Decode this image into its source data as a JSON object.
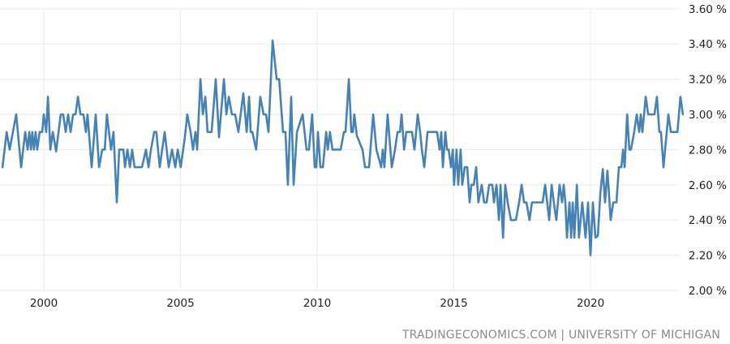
{
  "chart_data": {
    "type": "line",
    "title": "",
    "xlabel": "",
    "ylabel": "",
    "xlim": [
      1998.4,
      2024.0
    ],
    "ylim": [
      2.0,
      3.6
    ],
    "grid": true,
    "line_color": "#4682b4",
    "grid_color": "#ececec",
    "x_ticks": [
      2000,
      2005,
      2010,
      2015,
      2020
    ],
    "x_tick_labels": [
      "2000",
      "2005",
      "2010",
      "2015",
      "2020"
    ],
    "y_ticks": [
      2.0,
      2.2,
      2.4,
      2.6,
      2.8,
      3.0,
      3.2,
      3.4,
      3.6
    ],
    "y_tick_labels": [
      "2.00 %",
      "2.20 %",
      "2.40 %",
      "2.60 %",
      "2.80 %",
      "3.00 %",
      "3.20 %",
      "3.40 %",
      "3.60 %"
    ],
    "source": "TRADINGECONOMICS.COM | UNIVERSITY OF MICHIGAN",
    "series": [
      {
        "x": [
          1998.49,
          1998.64,
          1998.75,
          1998.99,
          1999.17,
          1999.32,
          1999.41,
          1999.47,
          1999.53,
          1999.58,
          1999.64,
          1999.7,
          1999.76,
          1999.85,
          1999.94,
          2000.0,
          2000.09,
          2000.15,
          2000.24,
          2000.33,
          2000.45,
          2000.62,
          2000.71,
          2000.8,
          2000.89,
          2000.98,
          2001.07,
          2001.16,
          2001.25,
          2001.34,
          2001.45,
          2001.54,
          2001.6,
          2001.75,
          2001.9,
          2002.02,
          2002.14,
          2002.23,
          2002.31,
          2002.46,
          2002.55,
          2002.67,
          2002.76,
          2002.91,
          2002.97,
          2003.06,
          2003.15,
          2003.23,
          2003.32,
          2003.41,
          2003.59,
          2003.74,
          2003.83,
          2003.92,
          2004.04,
          2004.12,
          2004.24,
          2004.42,
          2004.57,
          2004.69,
          2004.81,
          2004.9,
          2005.01,
          2005.16,
          2005.25,
          2005.37,
          2005.46,
          2005.55,
          2005.61,
          2005.73,
          2005.82,
          2005.91,
          2005.99,
          2006.05,
          2006.14,
          2006.29,
          2006.41,
          2006.59,
          2006.68,
          2006.77,
          2006.88,
          2007.0,
          2007.12,
          2007.3,
          2007.42,
          2007.51,
          2007.57,
          2007.63,
          2007.77,
          2007.92,
          2008.04,
          2008.13,
          2008.22,
          2008.37,
          2008.52,
          2008.61,
          2008.75,
          2008.84,
          2008.93,
          2009.05,
          2009.14,
          2009.26,
          2009.47,
          2009.61,
          2009.7,
          2009.82,
          2009.91,
          2009.97,
          2010.03,
          2010.12,
          2010.21,
          2010.33,
          2010.39,
          2010.47,
          2010.56,
          2010.68,
          2010.86,
          2010.98,
          2011.04,
          2011.16,
          2011.25,
          2011.31,
          2011.36,
          2011.45,
          2011.66,
          2011.75,
          2011.9,
          2012.05,
          2012.17,
          2012.34,
          2012.4,
          2012.46,
          2012.58,
          2012.73,
          2012.85,
          2012.94,
          2013.03,
          2013.09,
          2013.18,
          2013.26,
          2013.35,
          2013.47,
          2013.56,
          2013.68,
          2013.77,
          2013.83,
          2013.92,
          2014.04,
          2014.15,
          2014.27,
          2014.39,
          2014.48,
          2014.54,
          2014.6,
          2014.69,
          2014.75,
          2014.81,
          2014.9,
          2014.96,
          2015.01,
          2015.1,
          2015.16,
          2015.25,
          2015.31,
          2015.4,
          2015.49,
          2015.58,
          2015.64,
          2015.73,
          2015.82,
          2015.9,
          2016.02,
          2016.11,
          2016.2,
          2016.29,
          2016.41,
          2016.47,
          2016.56,
          2016.65,
          2016.71,
          2016.8,
          2016.88,
          2016.97,
          2017.09,
          2017.18,
          2017.27,
          2017.39,
          2017.48,
          2017.57,
          2017.66,
          2017.77,
          2017.86,
          2017.98,
          2018.16,
          2018.25,
          2018.34,
          2018.49,
          2018.58,
          2018.66,
          2018.75,
          2018.87,
          2018.96,
          2019.02,
          2019.08,
          2019.14,
          2019.23,
          2019.29,
          2019.35,
          2019.41,
          2019.5,
          2019.58,
          2019.7,
          2019.82,
          2019.91,
          2020.0,
          2020.09,
          2020.18,
          2020.27,
          2020.36,
          2020.45,
          2020.53,
          2020.62,
          2020.74,
          2020.83,
          2020.95,
          2021.04,
          2021.13,
          2021.19,
          2021.25,
          2021.34,
          2021.42,
          2021.48,
          2021.6,
          2021.69,
          2021.78,
          2021.84,
          2021.9,
          2022.02,
          2022.11,
          2022.23,
          2022.34,
          2022.43,
          2022.52,
          2022.58,
          2022.67,
          2022.79,
          2022.85,
          2022.94,
          2023.03,
          2023.18,
          2023.29,
          2023.38
        ],
        "y": [
          2.7,
          2.9,
          2.8,
          3.0,
          2.7,
          2.9,
          2.8,
          2.9,
          2.8,
          2.9,
          2.8,
          2.9,
          2.8,
          2.9,
          2.9,
          3.0,
          2.9,
          3.1,
          2.8,
          2.9,
          2.79,
          3.0,
          3.0,
          2.9,
          3.0,
          2.9,
          3.0,
          3.0,
          3.1,
          3.0,
          3.0,
          2.9,
          3.0,
          2.7,
          3.0,
          2.7,
          2.8,
          2.8,
          3.0,
          2.8,
          2.9,
          2.5,
          2.8,
          2.8,
          2.7,
          2.8,
          2.7,
          2.8,
          2.7,
          2.7,
          2.7,
          2.8,
          2.7,
          2.8,
          2.9,
          2.9,
          2.7,
          2.9,
          2.7,
          2.8,
          2.7,
          2.8,
          2.7,
          2.87,
          3.0,
          2.9,
          2.8,
          2.9,
          2.8,
          3.2,
          3.0,
          3.1,
          2.9,
          2.9,
          2.9,
          3.2,
          2.87,
          3.2,
          3.0,
          3.1,
          3.0,
          3.0,
          2.9,
          3.12,
          2.9,
          3.1,
          2.9,
          2.9,
          2.8,
          3.1,
          3.0,
          3.0,
          2.9,
          3.42,
          3.2,
          3.2,
          2.9,
          2.9,
          2.6,
          3.1,
          2.6,
          2.9,
          3.0,
          2.8,
          2.8,
          3.0,
          2.7,
          2.7,
          2.9,
          2.7,
          2.7,
          2.9,
          2.8,
          2.9,
          2.8,
          2.8,
          2.8,
          2.9,
          2.9,
          3.2,
          2.9,
          2.9,
          3.0,
          2.88,
          2.8,
          2.7,
          2.7,
          3.0,
          2.8,
          2.7,
          2.8,
          2.7,
          3.0,
          2.7,
          2.8,
          2.9,
          2.9,
          3.0,
          2.8,
          2.9,
          2.9,
          2.9,
          2.8,
          3.0,
          2.9,
          2.8,
          2.7,
          2.9,
          2.9,
          2.9,
          2.9,
          2.8,
          2.9,
          2.7,
          2.9,
          2.8,
          2.8,
          2.7,
          2.8,
          2.6,
          2.8,
          2.6,
          2.8,
          2.6,
          2.7,
          2.7,
          2.5,
          2.6,
          2.6,
          2.7,
          2.5,
          2.6,
          2.5,
          2.5,
          2.6,
          2.6,
          2.5,
          2.6,
          2.4,
          2.6,
          2.3,
          2.6,
          2.5,
          2.4,
          2.4,
          2.4,
          2.5,
          2.6,
          2.5,
          2.5,
          2.4,
          2.5,
          2.5,
          2.5,
          2.5,
          2.6,
          2.4,
          2.6,
          2.5,
          2.4,
          2.6,
          2.5,
          2.6,
          2.5,
          2.3,
          2.5,
          2.3,
          2.5,
          2.3,
          2.6,
          2.3,
          2.5,
          2.3,
          2.5,
          2.2,
          2.5,
          2.3,
          2.31,
          2.55,
          2.69,
          2.5,
          2.68,
          2.4,
          2.5,
          2.5,
          2.7,
          2.7,
          2.8,
          2.7,
          3.0,
          2.8,
          2.8,
          2.9,
          3.0,
          2.9,
          3.0,
          2.9,
          3.1,
          3.0,
          3.0,
          3.0,
          3.1,
          2.9,
          2.9,
          2.7,
          2.9,
          3.0,
          2.9,
          2.9,
          2.9,
          3.1,
          3.0
        ]
      }
    ]
  }
}
